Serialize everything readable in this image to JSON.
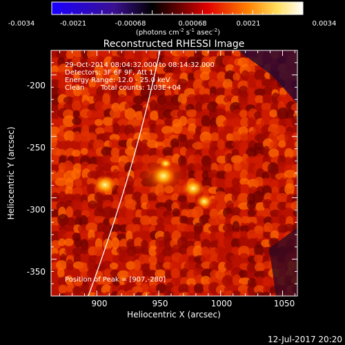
{
  "title": "Reconstructed RHESSI Image",
  "colorbar": {
    "ticks": [
      "-0.0034",
      "-0.0021",
      "-0.00068",
      "0.00068",
      "0.0021",
      "0.0034"
    ],
    "unit_main": "(photons cm",
    "unit_exp1": "-2",
    "unit_mid": " s",
    "unit_exp2": "-1",
    "unit_end": " asec",
    "unit_exp3": "-2",
    "unit_close": ")",
    "colors": [
      "#1a00ff",
      "#3c1aa0",
      "#000000",
      "#7a0000",
      "#ff0000",
      "#ff9a00",
      "#ffffa0",
      "#ffffff"
    ]
  },
  "plot": {
    "xlabel": "Heliocentric X (arcsec)",
    "ylabel": "Heliocentric Y (arcsec)",
    "x_ticks": [
      "900",
      "950",
      "1000",
      "1050"
    ],
    "y_ticks": [
      "-200",
      "-250",
      "-300",
      "-350"
    ],
    "x_tick_values": [
      900,
      950,
      1000,
      1050
    ],
    "y_tick_values": [
      -200,
      -250,
      -300,
      -350
    ],
    "xlim": [
      863,
      1062
    ],
    "ylim": [
      -380,
      -180
    ]
  },
  "annotations": {
    "line1": "29-Oct-2014 08:04:32.000 to 08:14:32.000",
    "line2": "Detectors: 3F 6F 9F, Att 1",
    "line3": "Energy Range: 12.0 - 25.0 keV",
    "line4_a": "Clean",
    "line4_b": "Total counts: 1.03E+04",
    "peak": "Position of Peak = [907,-280]"
  },
  "footer_date": "12-Jul-2017 20:20"
}
